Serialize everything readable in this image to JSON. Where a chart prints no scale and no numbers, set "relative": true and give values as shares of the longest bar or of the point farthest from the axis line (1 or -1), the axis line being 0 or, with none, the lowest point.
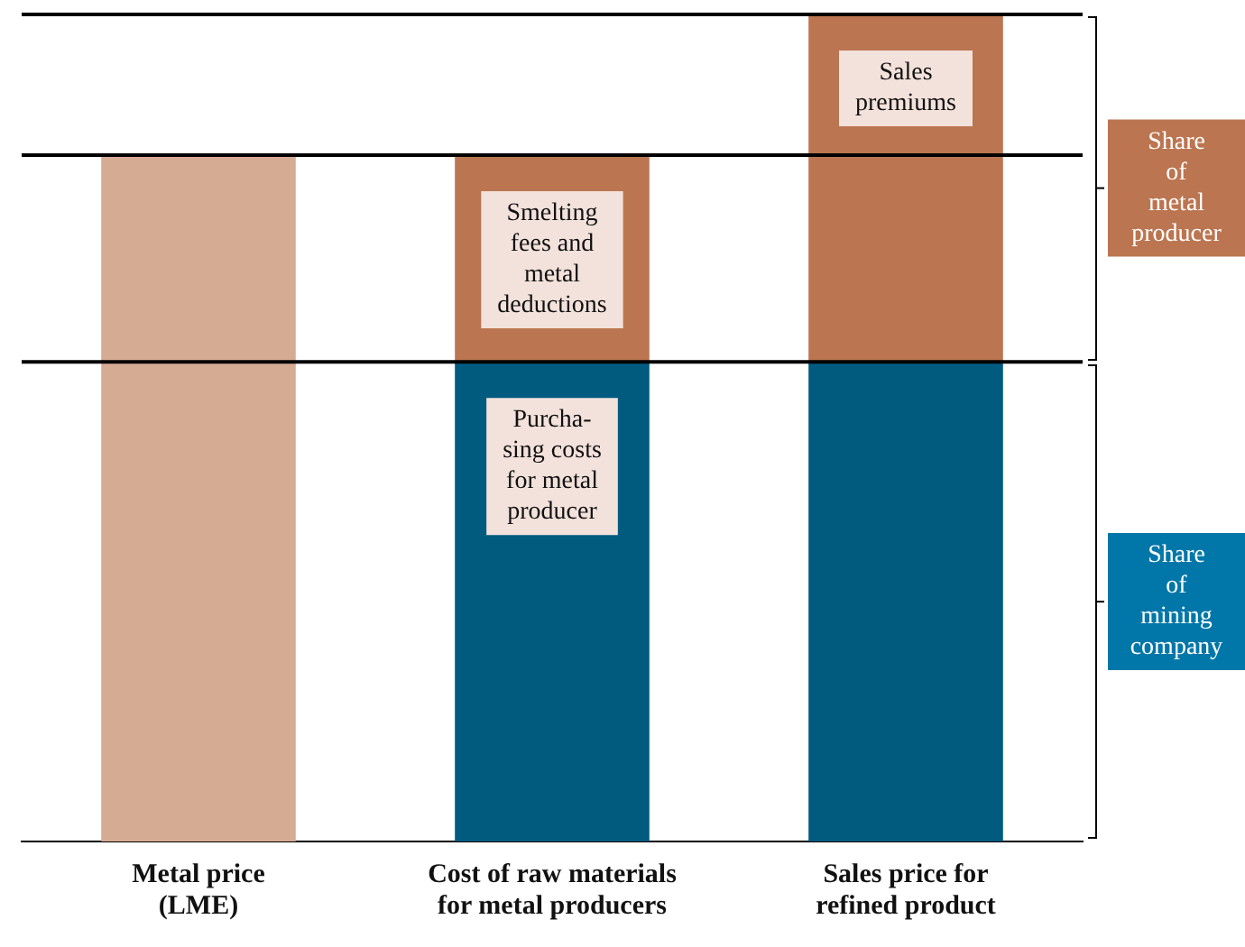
{
  "chart_data": {
    "type": "bar",
    "stacked": true,
    "relative": true,
    "categories": [
      "Metal price\n(LME)",
      "Cost of raw materials\nfor metal producers",
      "Sales price for\nrefined product"
    ],
    "series": [
      {
        "color": "#d6ab93",
        "values": [
          0.83,
          null,
          null
        ]
      },
      {
        "color": "#005b7f",
        "values": [
          null,
          0.58,
          0.58
        ]
      },
      {
        "color": "#bb7550",
        "values": [
          null,
          0.25,
          0.42
        ]
      }
    ],
    "ref_lines": [
      {
        "axis": "y",
        "value": 1.0
      },
      {
        "axis": "y",
        "value": 0.83
      },
      {
        "axis": "y",
        "value": 0.58
      }
    ],
    "annotations": [
      "Sales\npremiums",
      "Smelting\nfees and\nmetal\ndeductions",
      "Purcha-\nsing costs\nfor metal\nproducer",
      "Share\nof\nmetal\nproducer",
      "Share\nof\nmining\ncompany"
    ],
    "grid": false,
    "legend": false
  }
}
